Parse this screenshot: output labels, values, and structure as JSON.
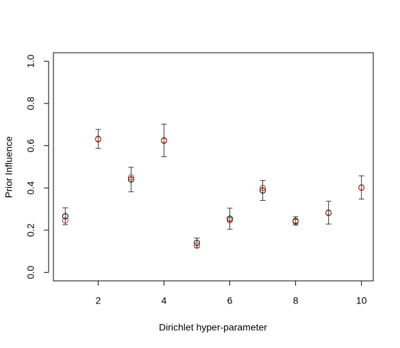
{
  "chart_data": {
    "type": "errorbar-scatter",
    "x_label": "Dirichlet hyper-parameter",
    "y_label": "Prior Influence",
    "x": [
      1,
      2,
      3,
      4,
      5,
      6,
      7,
      8,
      9,
      10
    ],
    "series": [
      {
        "color": "#000000",
        "values": [
          0.266,
          0.632,
          0.44,
          0.625,
          0.14,
          0.254,
          0.388,
          0.244,
          0.283,
          0.402
        ],
        "errors": [
          0.04,
          0.045,
          0.058,
          0.077,
          0.023,
          0.05,
          0.047,
          0.02,
          0.054,
          0.055
        ]
      },
      {
        "color": "#c0392b",
        "values": [
          0.246,
          0.63,
          0.45,
          0.623,
          0.127,
          0.247,
          0.4,
          0.24,
          0.281,
          0.401
        ]
      }
    ],
    "xlim": [
      0.64,
      10.36
    ],
    "ylim": [
      -0.04,
      1.04
    ],
    "xticks": [
      2,
      4,
      6,
      8,
      10
    ],
    "yticks": [
      {
        "value": 0,
        "label": "0.0"
      },
      0.2,
      0.4,
      0.6,
      0.8,
      {
        "value": 1,
        "label": "1.0"
      }
    ]
  }
}
